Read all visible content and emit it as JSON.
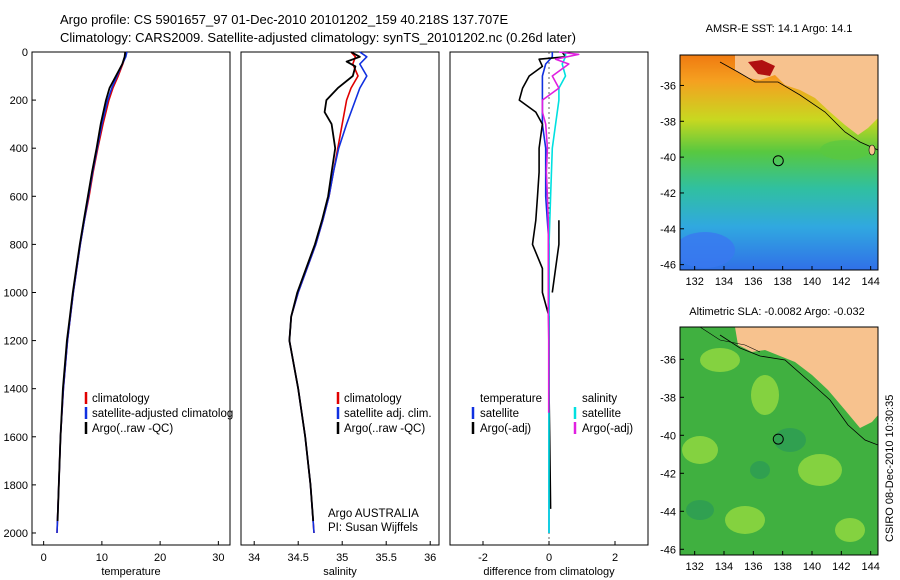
{
  "title_line1": "Argo profile: CS 5901657_97 01-Dec-2010 20101202_159 40.218S 137.707E",
  "title_line2": "Climatology: CARS2009. Satellite-adjusted climatology: synTS_20101202.nc (0.26d later)",
  "colors": {
    "climatology": "#e00000",
    "satellite": "#1030e0",
    "argo": "#000000",
    "satellite_diff": "#00e0e0",
    "argo_adj_diff": "#e020e0",
    "land": "#f7c28e"
  },
  "depth_ticks": [
    "0",
    "200",
    "400",
    "600",
    "800",
    "1000",
    "1200",
    "1400",
    "1600",
    "1800",
    "2000"
  ],
  "stamp": "CSIRO 08-Dec-2010 10:30:35",
  "chart_data": [
    {
      "type": "line",
      "xlabel": "temperature",
      "x_ticks": [
        "0",
        "10",
        "20",
        "30"
      ],
      "xlim": [
        -2,
        32
      ],
      "ylim": [
        0,
        2050
      ],
      "legend": [
        "climatology",
        "satellite-adjusted climatolog",
        "Argo(..raw -QC)"
      ],
      "series": [
        {
          "name": "climatology",
          "depth": [
            0,
            20,
            50,
            100,
            150,
            200,
            300,
            400,
            500,
            600,
            700,
            800,
            900,
            1000,
            1100,
            1200,
            1400,
            1600,
            1800,
            2000
          ],
          "values": [
            14.2,
            14.0,
            13.6,
            12.8,
            11.9,
            11.2,
            10.2,
            9.3,
            8.5,
            7.8,
            7.0,
            6.3,
            5.7,
            5.1,
            4.6,
            4.1,
            3.4,
            2.9,
            2.6,
            2.3
          ]
        },
        {
          "name": "satellite-adjusted climatolog",
          "depth": [
            0,
            20,
            50,
            100,
            150,
            200,
            300,
            400,
            500,
            600,
            700,
            800,
            900,
            1000,
            1100,
            1200,
            1400,
            1600,
            1800,
            2000
          ],
          "values": [
            14.3,
            14.1,
            13.5,
            12.6,
            11.7,
            11.0,
            10.0,
            9.2,
            8.4,
            7.7,
            7.0,
            6.3,
            5.7,
            5.1,
            4.6,
            4.1,
            3.4,
            2.9,
            2.6,
            2.3
          ]
        },
        {
          "name": "Argo(..raw -QC)",
          "depth": [
            0,
            20,
            50,
            100,
            150,
            200,
            300,
            400,
            500,
            600,
            700,
            800,
            900,
            1000,
            1100,
            1200,
            1400,
            1600,
            1800,
            1950
          ],
          "values": [
            14.0,
            13.9,
            13.5,
            12.4,
            11.3,
            10.7,
            9.8,
            9.1,
            8.3,
            7.6,
            6.9,
            6.2,
            5.6,
            5.0,
            4.5,
            4.0,
            3.3,
            2.9,
            2.6,
            2.4
          ]
        }
      ]
    },
    {
      "type": "line",
      "xlabel": "salinity",
      "x_ticks": [
        "34",
        "34.5",
        "35",
        "35.5",
        "36"
      ],
      "xlim": [
        33.85,
        36.1
      ],
      "ylim": [
        0,
        2050
      ],
      "legend": [
        "climatology",
        "satellite adj. clim.",
        "Argo(..raw -QC)"
      ],
      "annotations": [
        "Argo AUSTRALIA",
        "PI: Susan Wijffels"
      ],
      "series": [
        {
          "name": "climatology",
          "depth": [
            0,
            20,
            50,
            100,
            150,
            200,
            300,
            400,
            500,
            600,
            700,
            800,
            900,
            1000,
            1100,
            1200,
            1400,
            1600,
            1800,
            2000
          ],
          "values": [
            35.1,
            35.15,
            35.12,
            35.18,
            35.1,
            35.05,
            35.0,
            34.95,
            34.9,
            34.85,
            34.78,
            34.7,
            34.6,
            34.5,
            34.42,
            34.4,
            34.5,
            34.58,
            34.64,
            34.68
          ]
        },
        {
          "name": "satellite adj. clim.",
          "depth": [
            0,
            20,
            50,
            100,
            150,
            200,
            300,
            400,
            500,
            600,
            700,
            800,
            900,
            1000,
            1100,
            1200,
            1400,
            1600,
            1800,
            2000
          ],
          "values": [
            35.2,
            35.28,
            35.2,
            35.28,
            35.2,
            35.15,
            35.05,
            34.96,
            34.9,
            34.85,
            34.78,
            34.7,
            34.6,
            34.5,
            34.42,
            34.4,
            34.5,
            34.58,
            34.64,
            34.68
          ]
        },
        {
          "name": "Argo(..raw -QC)",
          "depth": [
            0,
            20,
            40,
            60,
            100,
            150,
            200,
            250,
            300,
            400,
            500,
            600,
            700,
            800,
            900,
            1000,
            1100,
            1200,
            1400,
            1600,
            1800,
            1950
          ],
          "values": [
            35.1,
            35.2,
            35.05,
            35.15,
            35.12,
            34.95,
            34.82,
            34.8,
            34.88,
            34.92,
            34.88,
            34.84,
            34.77,
            34.69,
            34.59,
            34.49,
            34.42,
            34.4,
            34.5,
            34.58,
            34.64,
            34.67
          ]
        }
      ]
    },
    {
      "type": "line",
      "xlabel": "difference from climatology",
      "x_ticks": [
        "-2",
        "0",
        "2"
      ],
      "xlim": [
        -3,
        3
      ],
      "ylim": [
        0,
        2050
      ],
      "legend_temperature": [
        "temperature",
        "satellite",
        "Argo(-adj)"
      ],
      "legend_salinity": [
        "salinity",
        "satellite",
        "Argo(-adj)"
      ],
      "series": [
        {
          "name": "temperature satellite",
          "depth": [
            0,
            20,
            50,
            100,
            150,
            200,
            300,
            400,
            600,
            800,
            1000,
            1200,
            1600,
            2000
          ],
          "values": [
            0.1,
            0.1,
            -0.1,
            -0.2,
            -0.2,
            -0.2,
            -0.2,
            -0.1,
            -0.1,
            0,
            0,
            0,
            0,
            0
          ]
        },
        {
          "name": "temperature Argo(-adj)",
          "depth": [
            0,
            20,
            30,
            60,
            100,
            150,
            200,
            250,
            300,
            400,
            500,
            600,
            700,
            800,
            900,
            1000,
            1100,
            1200,
            1400,
            1600,
            1900
          ],
          "values": [
            0.4,
            0.5,
            -0.3,
            -0.2,
            -0.6,
            -0.8,
            -0.9,
            -0.4,
            -0.2,
            -0.3,
            -0.3,
            -0.35,
            -0.4,
            -0.5,
            -0.2,
            -0.2,
            0,
            0,
            0,
            0.02,
            0.05
          ]
        },
        {
          "name": "salinity satellite",
          "depth": [
            0,
            20,
            50,
            100,
            150,
            200,
            300,
            400,
            600,
            800,
            1000,
            1200,
            1600,
            2000
          ],
          "values": [
            0.5,
            0.5,
            0.4,
            0.5,
            0.3,
            0.3,
            0.2,
            0.1,
            0.05,
            0,
            0,
            0,
            0,
            0
          ]
        },
        {
          "name": "salinity Argo(-adj)",
          "depth": [
            0,
            10,
            30,
            50,
            100,
            150,
            200,
            250,
            300,
            400,
            500,
            600,
            700,
            800,
            900,
            1000,
            1100,
            1200,
            1400,
            1500
          ],
          "values": [
            0.3,
            0.9,
            0.2,
            0.6,
            0.1,
            0.3,
            -0.2,
            -0.2,
            -0.1,
            -0.05,
            -0.08,
            -0.05,
            -0.02,
            -0.02,
            -0.02,
            -0.02,
            -0.02,
            -0.01,
            -0.01,
            -0.01
          ]
        },
        {
          "name": "temperature Argo(-adj) 2",
          "depth": [
            700,
            800,
            900,
            1000
          ],
          "values": [
            0.3,
            0.3,
            0.2,
            0.1
          ]
        }
      ]
    },
    {
      "type": "heatmap",
      "title": "AMSR-E SST: 14.1 Argo: 14.1",
      "x_ticks": [
        "132",
        "134",
        "136",
        "138",
        "140",
        "142",
        "144"
      ],
      "y_ticks": [
        "-36",
        "-38",
        "-40",
        "-42",
        "-44",
        "-46"
      ],
      "xlim": [
        131,
        144.5
      ],
      "ylim": [
        -46.3,
        -34.3
      ],
      "marker": {
        "lon": 137.7,
        "lat": -40.2
      }
    },
    {
      "type": "heatmap",
      "title": "Altimetric SLA: -0.0082 Argo: -0.032",
      "x_ticks": [
        "132",
        "134",
        "136",
        "138",
        "140",
        "142",
        "144"
      ],
      "y_ticks": [
        "-36",
        "-38",
        "-40",
        "-42",
        "-44",
        "-46"
      ],
      "xlim": [
        131,
        144.5
      ],
      "ylim": [
        -46.3,
        -34.3
      ],
      "marker": {
        "lon": 137.7,
        "lat": -40.2
      }
    }
  ]
}
